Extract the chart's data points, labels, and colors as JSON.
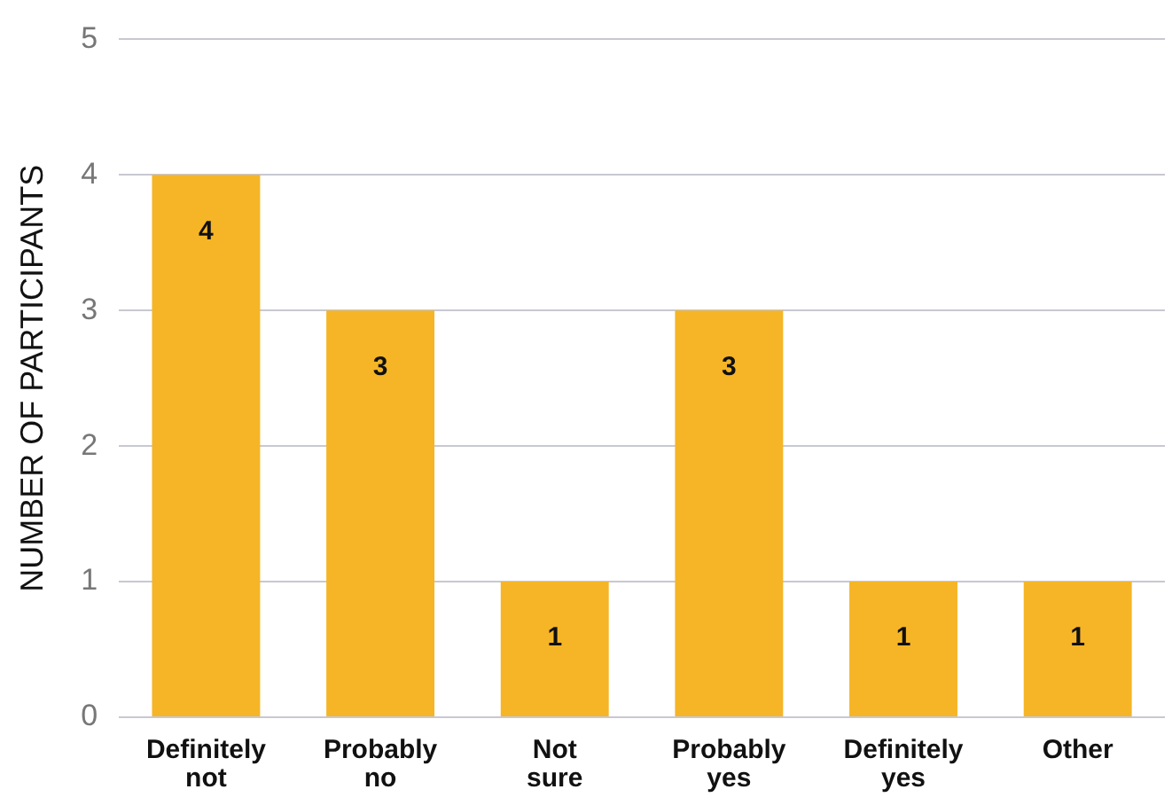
{
  "chart_data": {
    "type": "bar",
    "ylabel": "NUMBER OF PARTICIPANTS",
    "categories": [
      "Definitely not",
      "Probably no",
      "Not sure",
      "Probably yes",
      "Definitely yes",
      "Other"
    ],
    "values": [
      4,
      3,
      1,
      3,
      1,
      1
    ],
    "color": "#f5b526",
    "ylim": [
      0,
      5
    ],
    "yticks": [
      0,
      1,
      2,
      3,
      4,
      5
    ],
    "grid": "y",
    "data_labels": true
  }
}
